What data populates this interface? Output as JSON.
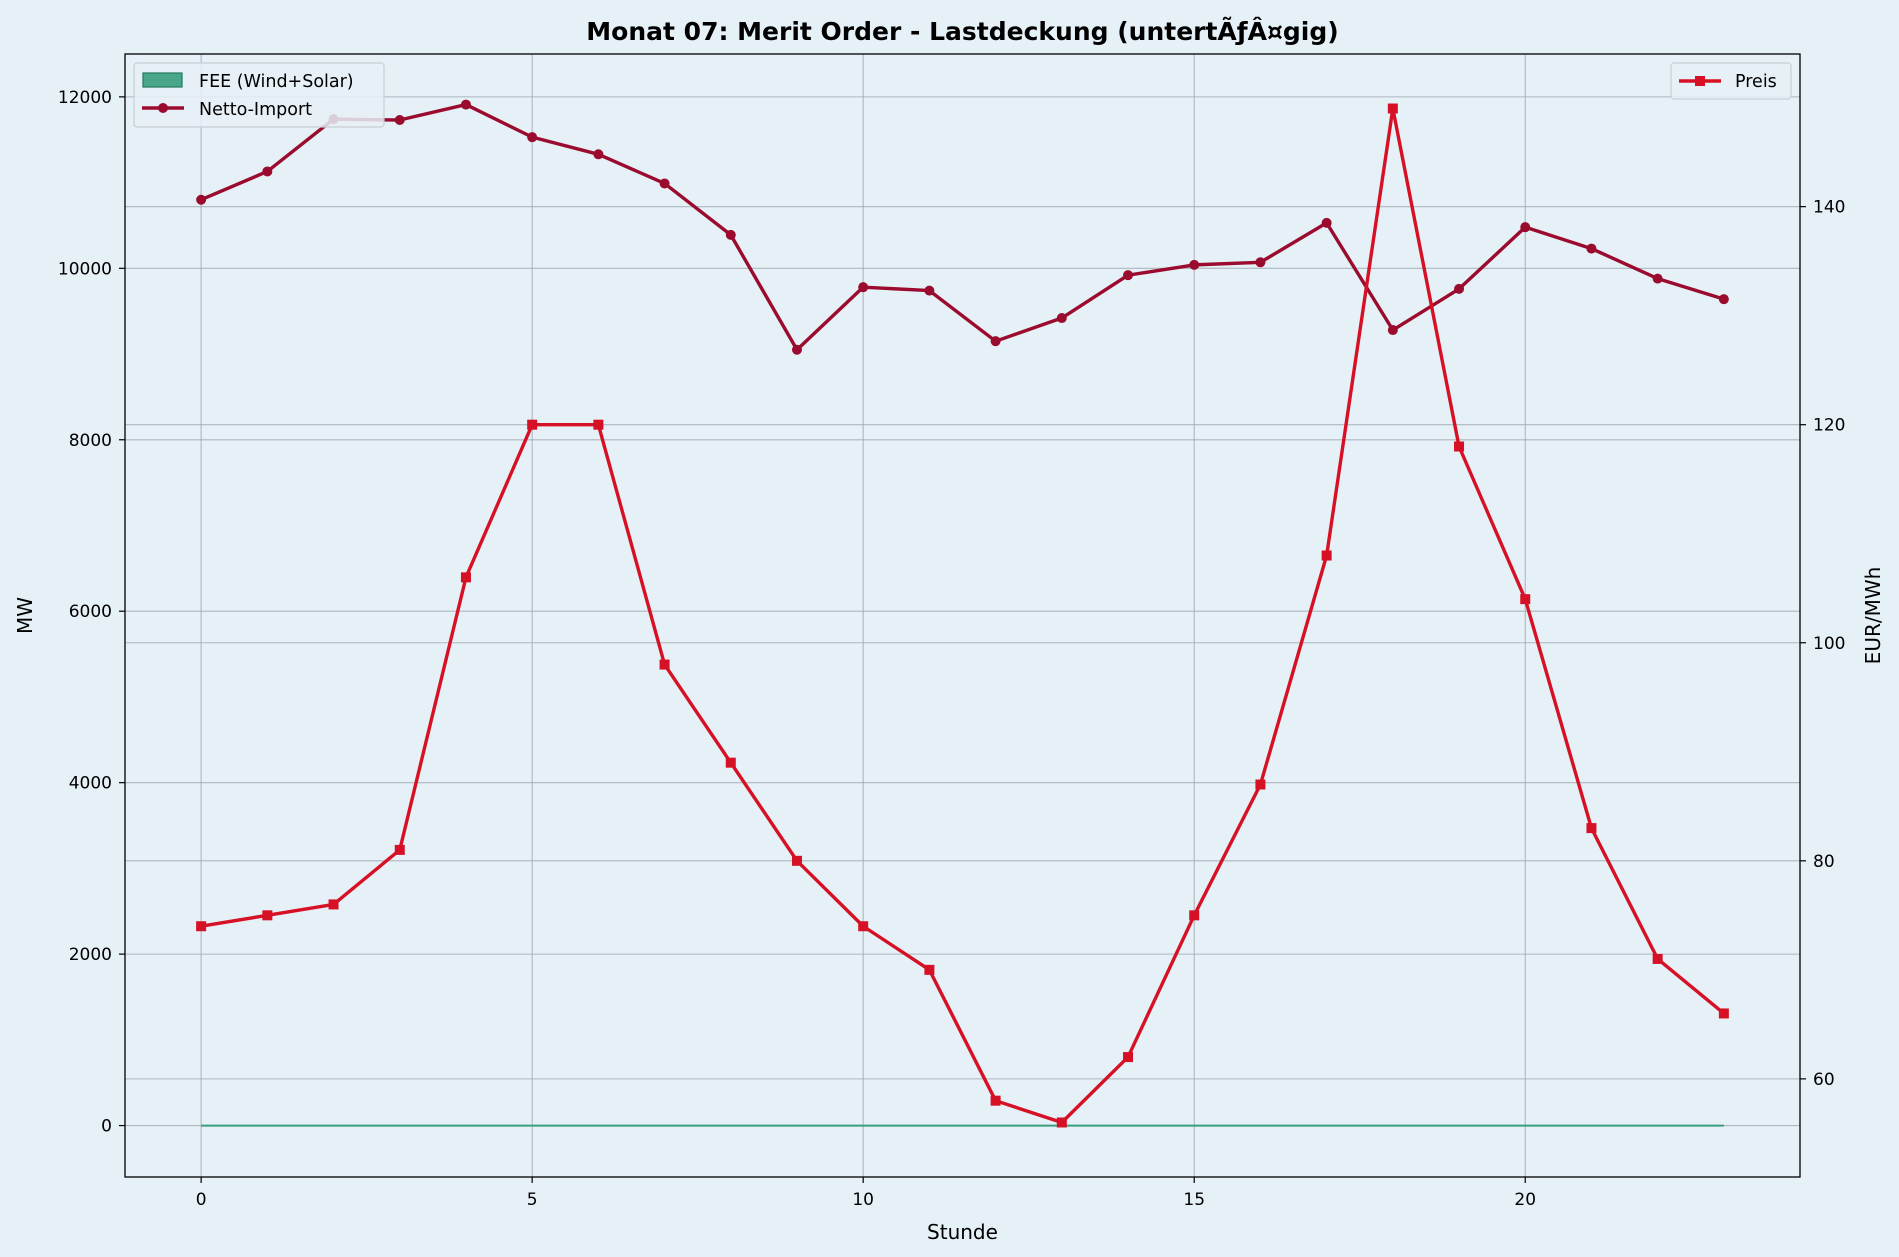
{
  "chart_data": {
    "type": "line",
    "title": "Monat 07: Merit Order - Lastdeckung (untertÃƒÂ¤gig)",
    "xlabel": "Stunde",
    "ylabel": "MW",
    "ylabel_right": "EUR/MWh",
    "x": [
      0,
      1,
      2,
      3,
      4,
      5,
      6,
      7,
      8,
      9,
      10,
      11,
      12,
      13,
      14,
      15,
      16,
      17,
      18,
      19,
      20,
      21,
      22,
      23
    ],
    "xlim": [
      -1.15,
      24.15
    ],
    "ylim": [
      -600,
      12500
    ],
    "ylim_right": [
      51,
      154
    ],
    "xticks": [
      0,
      5,
      10,
      15,
      20
    ],
    "yticks": [
      0,
      2000,
      4000,
      6000,
      8000,
      10000,
      12000
    ],
    "yticks_right": [
      60,
      80,
      100,
      120,
      140
    ],
    "grid": true,
    "colors": {
      "background": "#e6f0f7",
      "fee": "#3a9e7e",
      "netto_import": "#9b0b2e",
      "preis": "#d61125",
      "grid": "#9aa4ab"
    },
    "series": [
      {
        "name": "FEE (Wind+Solar)",
        "kind": "area",
        "axis": "left",
        "values": [
          0,
          0,
          0,
          0,
          0,
          0,
          0,
          0,
          0,
          0,
          0,
          0,
          0,
          0,
          0,
          0,
          0,
          0,
          0,
          0,
          0,
          0,
          0,
          0
        ]
      },
      {
        "name": "Netto-Import",
        "kind": "line",
        "marker": "circle",
        "axis": "left",
        "values": [
          10800,
          11130,
          11740,
          11730,
          11910,
          11530,
          11330,
          10990,
          10390,
          9050,
          9780,
          9740,
          9150,
          9420,
          9920,
          10040,
          10070,
          10530,
          9280,
          9760,
          10480,
          10230,
          9880,
          9640
        ]
      },
      {
        "name": "Preis",
        "kind": "line",
        "marker": "square",
        "axis": "right",
        "values": [
          74,
          75,
          76,
          81,
          106,
          120,
          120,
          98,
          89,
          80,
          74,
          70,
          58,
          56,
          62,
          75,
          87,
          108,
          149,
          118,
          104,
          83,
          71,
          66
        ]
      }
    ],
    "legend_left": {
      "placement": "top-left",
      "entries": [
        "FEE (Wind+Solar)",
        "Netto-Import"
      ]
    },
    "legend_right": {
      "placement": "top-right",
      "entries": [
        "Preis"
      ]
    }
  }
}
